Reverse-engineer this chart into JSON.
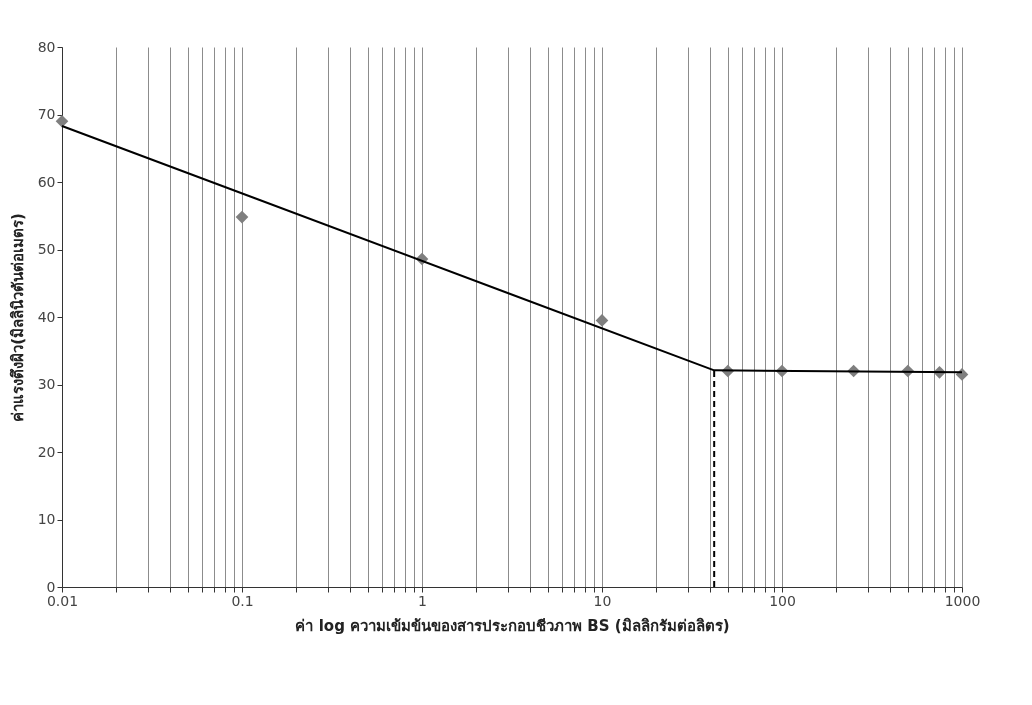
{
  "chart_data": {
    "type": "scatter",
    "xlabel": "ค่า log ความเข้มข้นของสารประกอบชีวภาพ BS (มิลลิกรัมต่อลิตร)",
    "ylabel": "ค่าแรงตึงผิว(มิลลินิวตันต่อเมตร)",
    "log": "x",
    "grid": "x",
    "xlim": [
      0.01,
      1000
    ],
    "ylim": [
      0,
      80
    ],
    "yticks": [
      0,
      10,
      20,
      30,
      40,
      50,
      60,
      70,
      80
    ],
    "xticks": [
      0.01,
      {
        "value": 0.02,
        "label": null
      },
      {
        "value": 0.03,
        "label": null
      },
      {
        "value": 0.04,
        "label": null
      },
      {
        "value": 0.05,
        "label": null
      },
      {
        "value": 0.06,
        "label": null
      },
      {
        "value": 0.07,
        "label": null
      },
      {
        "value": 0.08,
        "label": null
      },
      {
        "value": 0.09,
        "label": null
      },
      0.1,
      {
        "value": 0.2,
        "label": null
      },
      {
        "value": 0.3,
        "label": null
      },
      {
        "value": 0.4,
        "label": null
      },
      {
        "value": 0.5,
        "label": null
      },
      {
        "value": 0.6,
        "label": null
      },
      {
        "value": 0.7,
        "label": null
      },
      {
        "value": 0.8,
        "label": null
      },
      {
        "value": 0.9,
        "label": null
      },
      1,
      {
        "value": 2,
        "label": null
      },
      {
        "value": 3,
        "label": null
      },
      {
        "value": 4,
        "label": null
      },
      {
        "value": 5,
        "label": null
      },
      {
        "value": 6,
        "label": null
      },
      {
        "value": 7,
        "label": null
      },
      {
        "value": 8,
        "label": null
      },
      {
        "value": 9,
        "label": null
      },
      10,
      {
        "value": 20,
        "label": null
      },
      {
        "value": 30,
        "label": null
      },
      {
        "value": 40,
        "label": null
      },
      {
        "value": 50,
        "label": null
      },
      {
        "value": 60,
        "label": null
      },
      {
        "value": 70,
        "label": null
      },
      {
        "value": 80,
        "label": null
      },
      {
        "value": 90,
        "label": null
      },
      100,
      {
        "value": 200,
        "label": null
      },
      {
        "value": 300,
        "label": null
      },
      {
        "value": 400,
        "label": null
      },
      {
        "value": 500,
        "label": null
      },
      {
        "value": 600,
        "label": null
      },
      {
        "value": 700,
        "label": null
      },
      {
        "value": 800,
        "label": null
      },
      {
        "value": 900,
        "label": null
      },
      1000
    ],
    "series": [
      {
        "type": "scatter",
        "marker": "diamond",
        "color": "#7f7f7f",
        "x": [
          0.01,
          0.1,
          1,
          10,
          50,
          100,
          250,
          500,
          750,
          1000
        ],
        "values": [
          69,
          54.8,
          48.6,
          39.5,
          32,
          32,
          32,
          32,
          31.8,
          31.5
        ]
      },
      {
        "type": "line",
        "line_style": "solid",
        "color": "#000000",
        "x": [
          0.01,
          42,
          1000
        ],
        "values": [
          68.3,
          32.1,
          31.8
        ]
      },
      {
        "type": "line",
        "line_style": "dashed",
        "color": "#000000",
        "x": [
          42,
          42
        ],
        "values": [
          0,
          32.1
        ]
      }
    ]
  }
}
